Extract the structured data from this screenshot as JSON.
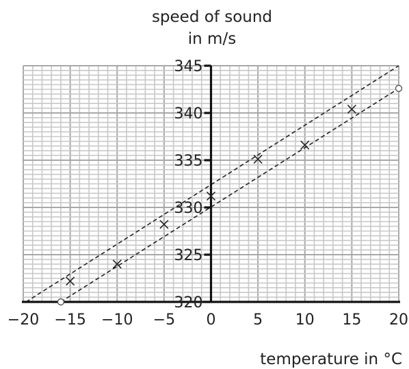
{
  "chart_data": {
    "type": "scatter",
    "ylabel_lines": [
      "speed of sound",
      "in m/s"
    ],
    "xlabel": "temperature in °C",
    "xlim": [
      -20,
      20
    ],
    "ylim": [
      320,
      345
    ],
    "x_ticks": [
      -20,
      -15,
      -10,
      -5,
      0,
      5,
      10,
      15,
      20
    ],
    "x_tick_labels": [
      "−20",
      "−15",
      "−10",
      "−5",
      "0",
      "5",
      "10",
      "15",
      "20"
    ],
    "y_ticks": [
      320,
      325,
      330,
      335,
      340,
      345
    ],
    "y_tick_labels": [
      "320",
      "325",
      "330",
      "335",
      "340",
      "345"
    ],
    "grid": true,
    "series": [
      {
        "marker": "x",
        "points": [
          {
            "x": -15,
            "y": 322.2
          },
          {
            "x": -10,
            "y": 324.0
          },
          {
            "x": -5,
            "y": 328.2
          },
          {
            "x": 0,
            "y": 331.2
          },
          {
            "x": 5,
            "y": 335.1
          },
          {
            "x": 10,
            "y": 336.6
          },
          {
            "x": 15,
            "y": 340.4
          }
        ]
      }
    ],
    "dashed_lines": [
      {
        "from": {
          "x": -19.7,
          "y": 320
        },
        "to": {
          "x": 20,
          "y": 345
        }
      },
      {
        "from": {
          "x": -16,
          "y": 320
        },
        "to": {
          "x": 20,
          "y": 342.6
        }
      }
    ],
    "open_circles": [
      {
        "x": -16,
        "y": 320
      },
      {
        "x": 20,
        "y": 342.6
      }
    ],
    "colors": {
      "grid_minor": "#c8c8c8",
      "grid_major": "#a8a8a8",
      "axis": "#111111",
      "marks": "#222222"
    }
  }
}
